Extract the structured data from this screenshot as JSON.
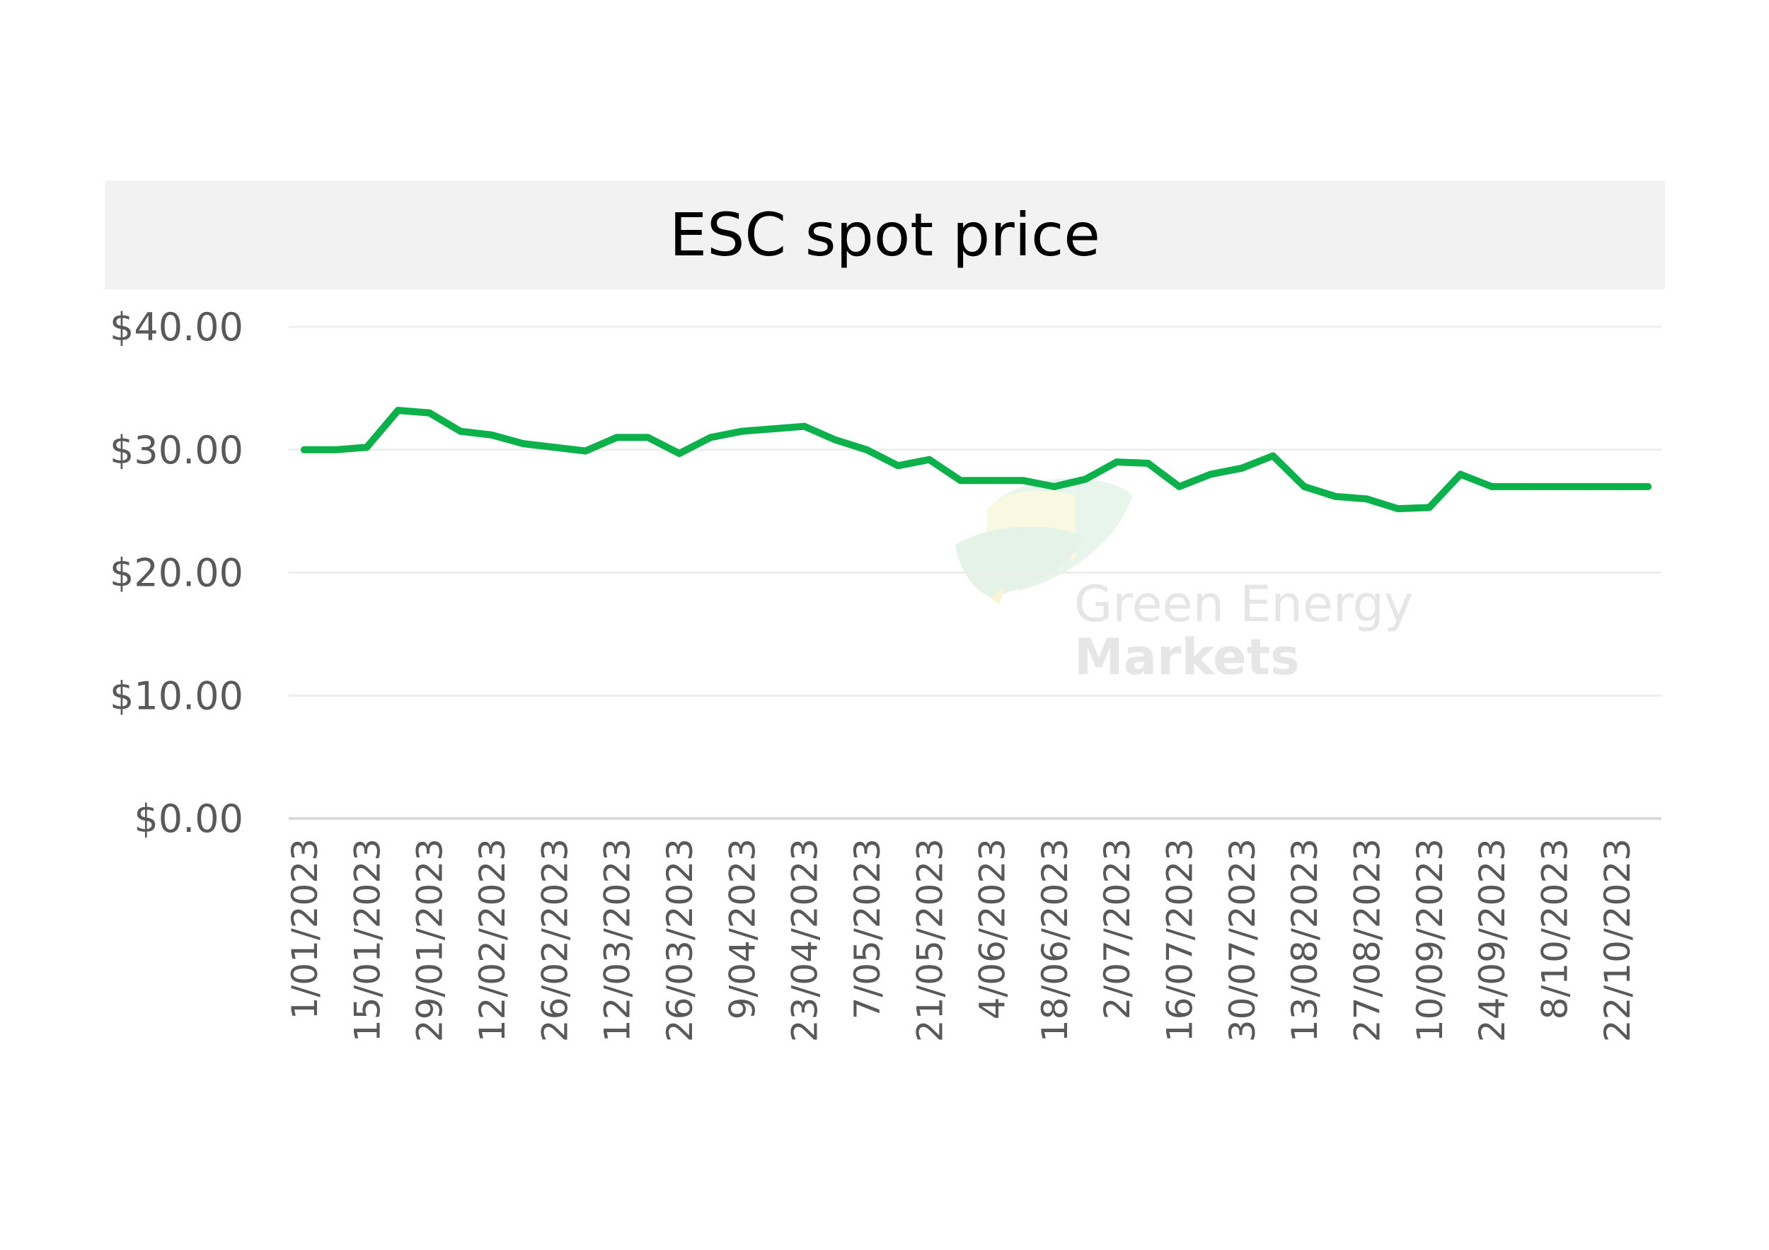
{
  "chart_data": {
    "type": "line",
    "title": "ESC spot price",
    "xlabel": "",
    "ylabel": "",
    "ylim": [
      0,
      40
    ],
    "y_ticks": [
      "$0.00",
      "$10.00",
      "$20.00",
      "$30.00",
      "$40.00"
    ],
    "y_tick_values": [
      0,
      10,
      20,
      30,
      40
    ],
    "x_tick_labels": [
      "1/01/2023",
      "15/01/2023",
      "29/01/2023",
      "12/02/2023",
      "26/02/2023",
      "12/03/2023",
      "26/03/2023",
      "9/04/2023",
      "23/04/2023",
      "7/05/2023",
      "21/05/2023",
      "4/06/2023",
      "18/06/2023",
      "2/07/2023",
      "16/07/2023",
      "30/07/2023",
      "13/08/2023",
      "27/08/2023",
      "10/09/2023",
      "24/09/2023",
      "8/10/2023",
      "22/10/2023"
    ],
    "grid": true,
    "legend": "none",
    "series": [
      {
        "color": "#0db14b",
        "x": [
          "1/01/2023",
          "8/01/2023",
          "15/01/2023",
          "22/01/2023",
          "29/01/2023",
          "5/02/2023",
          "12/02/2023",
          "19/02/2023",
          "26/02/2023",
          "5/03/2023",
          "12/03/2023",
          "19/03/2023",
          "26/03/2023",
          "2/04/2023",
          "9/04/2023",
          "16/04/2023",
          "23/04/2023",
          "30/04/2023",
          "7/05/2023",
          "14/05/2023",
          "21/05/2023",
          "28/05/2023",
          "4/06/2023",
          "11/06/2023",
          "18/06/2023",
          "25/06/2023",
          "2/07/2023",
          "9/07/2023",
          "16/07/2023",
          "23/07/2023",
          "30/07/2023",
          "6/08/2023",
          "13/08/2023",
          "20/08/2023",
          "27/08/2023",
          "3/09/2023",
          "10/09/2023",
          "17/09/2023",
          "24/09/2023",
          "1/10/2023",
          "8/10/2023",
          "15/10/2023",
          "22/10/2023",
          "29/10/2023"
        ],
        "values": [
          30.0,
          30.0,
          30.2,
          33.2,
          33.0,
          31.5,
          31.2,
          30.5,
          30.2,
          29.9,
          31.0,
          31.0,
          29.7,
          31.0,
          31.5,
          31.7,
          31.9,
          30.8,
          30.0,
          28.7,
          29.2,
          27.5,
          27.5,
          27.5,
          27.0,
          27.6,
          29.0,
          28.9,
          27.0,
          28.0,
          28.5,
          29.5,
          27.0,
          26.2,
          26.0,
          25.2,
          25.3,
          28.0,
          27.0,
          27.0,
          27.0,
          27.0,
          27.0,
          27.0
        ]
      }
    ]
  },
  "watermark": {
    "line1": "Green Energy",
    "line2": "Markets"
  }
}
